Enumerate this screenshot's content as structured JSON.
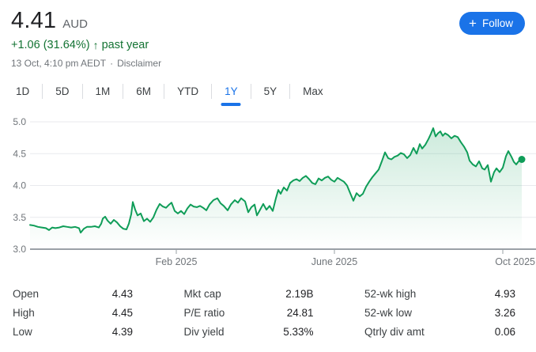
{
  "header": {
    "price": "4.41",
    "currency": "AUD",
    "change_text": "+1.06 (31.64%)",
    "change_arrow": "↑",
    "change_period": "past year",
    "timestamp": "13 Oct, 4:10 pm AEDT",
    "separator": "·",
    "disclaimer_label": "Disclaimer",
    "follow_button": {
      "plus": "+",
      "label": "Follow"
    }
  },
  "tabs": {
    "items": [
      "1D",
      "5D",
      "1M",
      "6M",
      "YTD",
      "1Y",
      "5Y",
      "Max"
    ],
    "active": "1Y"
  },
  "chart_data": {
    "type": "area",
    "ylabel": "",
    "xlabel": "",
    "ylim": [
      3.0,
      5.0
    ],
    "grid": true,
    "y_ticks": [
      {
        "value": 5.0,
        "label": "5.0"
      },
      {
        "value": 4.5,
        "label": "4.5"
      },
      {
        "value": 4.0,
        "label": "4.0"
      },
      {
        "value": 3.5,
        "label": "3.5"
      },
      {
        "value": 3.0,
        "label": "3.0"
      }
    ],
    "x_ticks": [
      {
        "label": "Feb 2025",
        "x": 223,
        "anchor": "middle"
      },
      {
        "label": "June 2025",
        "x": 423,
        "anchor": "middle"
      },
      {
        "label": "Oct 2025",
        "x": 636,
        "anchor": "end"
      }
    ],
    "series": [
      {
        "name": "price-aud-1y",
        "last_value": 4.41,
        "points": [
          [
            38,
            3.38
          ],
          [
            43,
            3.37
          ],
          [
            48,
            3.35
          ],
          [
            53,
            3.34
          ],
          [
            58,
            3.33
          ],
          [
            62,
            3.3
          ],
          [
            66,
            3.34
          ],
          [
            70,
            3.33
          ],
          [
            75,
            3.34
          ],
          [
            80,
            3.36
          ],
          [
            85,
            3.35
          ],
          [
            90,
            3.34
          ],
          [
            95,
            3.35
          ],
          [
            100,
            3.33
          ],
          [
            102,
            3.26
          ],
          [
            106,
            3.32
          ],
          [
            110,
            3.35
          ],
          [
            115,
            3.35
          ],
          [
            120,
            3.36
          ],
          [
            125,
            3.34
          ],
          [
            128,
            3.4
          ],
          [
            130,
            3.48
          ],
          [
            133,
            3.51
          ],
          [
            136,
            3.45
          ],
          [
            140,
            3.4
          ],
          [
            144,
            3.46
          ],
          [
            148,
            3.42
          ],
          [
            152,
            3.36
          ],
          [
            156,
            3.32
          ],
          [
            160,
            3.31
          ],
          [
            163,
            3.4
          ],
          [
            166,
            3.55
          ],
          [
            168,
            3.74
          ],
          [
            171,
            3.62
          ],
          [
            174,
            3.53
          ],
          [
            178,
            3.56
          ],
          [
            182,
            3.44
          ],
          [
            186,
            3.48
          ],
          [
            190,
            3.43
          ],
          [
            194,
            3.5
          ],
          [
            198,
            3.62
          ],
          [
            202,
            3.71
          ],
          [
            206,
            3.67
          ],
          [
            210,
            3.65
          ],
          [
            214,
            3.7
          ],
          [
            217,
            3.73
          ],
          [
            221,
            3.6
          ],
          [
            225,
            3.56
          ],
          [
            229,
            3.6
          ],
          [
            233,
            3.55
          ],
          [
            237,
            3.64
          ],
          [
            241,
            3.7
          ],
          [
            245,
            3.67
          ],
          [
            249,
            3.66
          ],
          [
            253,
            3.68
          ],
          [
            257,
            3.65
          ],
          [
            261,
            3.61
          ],
          [
            265,
            3.7
          ],
          [
            270,
            3.77
          ],
          [
            275,
            3.8
          ],
          [
            279,
            3.72
          ],
          [
            283,
            3.68
          ],
          [
            288,
            3.61
          ],
          [
            292,
            3.7
          ],
          [
            297,
            3.77
          ],
          [
            301,
            3.73
          ],
          [
            305,
            3.8
          ],
          [
            310,
            3.75
          ],
          [
            314,
            3.58
          ],
          [
            318,
            3.66
          ],
          [
            322,
            3.7
          ],
          [
            325,
            3.53
          ],
          [
            329,
            3.62
          ],
          [
            333,
            3.71
          ],
          [
            337,
            3.62
          ],
          [
            341,
            3.68
          ],
          [
            345,
            3.6
          ],
          [
            349,
            3.8
          ],
          [
            352,
            3.93
          ],
          [
            355,
            3.87
          ],
          [
            359,
            3.97
          ],
          [
            363,
            3.92
          ],
          [
            367,
            4.04
          ],
          [
            371,
            4.08
          ],
          [
            375,
            4.1
          ],
          [
            379,
            4.07
          ],
          [
            383,
            4.12
          ],
          [
            387,
            4.15
          ],
          [
            391,
            4.1
          ],
          [
            395,
            4.04
          ],
          [
            399,
            4.02
          ],
          [
            403,
            4.11
          ],
          [
            407,
            4.08
          ],
          [
            411,
            4.12
          ],
          [
            415,
            4.14
          ],
          [
            419,
            4.09
          ],
          [
            423,
            4.06
          ],
          [
            427,
            4.12
          ],
          [
            431,
            4.09
          ],
          [
            435,
            4.06
          ],
          [
            439,
            4.0
          ],
          [
            443,
            3.88
          ],
          [
            447,
            3.76
          ],
          [
            451,
            3.88
          ],
          [
            455,
            3.83
          ],
          [
            459,
            3.87
          ],
          [
            463,
            3.98
          ],
          [
            467,
            4.06
          ],
          [
            471,
            4.13
          ],
          [
            475,
            4.19
          ],
          [
            479,
            4.25
          ],
          [
            483,
            4.38
          ],
          [
            487,
            4.52
          ],
          [
            491,
            4.43
          ],
          [
            495,
            4.41
          ],
          [
            499,
            4.45
          ],
          [
            503,
            4.47
          ],
          [
            507,
            4.51
          ],
          [
            511,
            4.49
          ],
          [
            515,
            4.43
          ],
          [
            519,
            4.48
          ],
          [
            523,
            4.59
          ],
          [
            527,
            4.5
          ],
          [
            531,
            4.65
          ],
          [
            534,
            4.58
          ],
          [
            538,
            4.64
          ],
          [
            542,
            4.73
          ],
          [
            545,
            4.81
          ],
          [
            548,
            4.9
          ],
          [
            551,
            4.77
          ],
          [
            554,
            4.82
          ],
          [
            557,
            4.85
          ],
          [
            560,
            4.78
          ],
          [
            563,
            4.82
          ],
          [
            567,
            4.79
          ],
          [
            571,
            4.74
          ],
          [
            575,
            4.78
          ],
          [
            579,
            4.76
          ],
          [
            583,
            4.68
          ],
          [
            587,
            4.61
          ],
          [
            591,
            4.52
          ],
          [
            594,
            4.39
          ],
          [
            598,
            4.33
          ],
          [
            602,
            4.3
          ],
          [
            606,
            4.38
          ],
          [
            610,
            4.27
          ],
          [
            613,
            4.25
          ],
          [
            617,
            4.32
          ],
          [
            621,
            4.06
          ],
          [
            625,
            4.21
          ],
          [
            628,
            4.27
          ],
          [
            632,
            4.21
          ],
          [
            636,
            4.28
          ],
          [
            640,
            4.46
          ],
          [
            643,
            4.54
          ],
          [
            647,
            4.45
          ],
          [
            650,
            4.37
          ],
          [
            653,
            4.33
          ],
          [
            656,
            4.38
          ],
          [
            660,
            4.41
          ]
        ]
      }
    ],
    "colors": {
      "line": "#0f9d58",
      "fill_top": "#0f9d58",
      "fill_top_opacity": 0.22,
      "fill_bottom_opacity": 0,
      "grid": "#e8eaed",
      "baseline": "#9aa0a6",
      "tick_label": "#70757a"
    }
  },
  "stats": {
    "columns": [
      {
        "rows": [
          {
            "label": "Open",
            "value": "4.43"
          },
          {
            "label": "High",
            "value": "4.45"
          },
          {
            "label": "Low",
            "value": "4.39"
          }
        ]
      },
      {
        "rows": [
          {
            "label": "Mkt cap",
            "value": "2.19B"
          },
          {
            "label": "P/E ratio",
            "value": "24.81"
          },
          {
            "label": "Div yield",
            "value": "5.33%"
          }
        ]
      },
      {
        "rows": [
          {
            "label": "52-wk high",
            "value": "4.93"
          },
          {
            "label": "52-wk low",
            "value": "3.26"
          },
          {
            "label": "Qtrly div amt",
            "value": "0.06"
          }
        ]
      }
    ]
  }
}
